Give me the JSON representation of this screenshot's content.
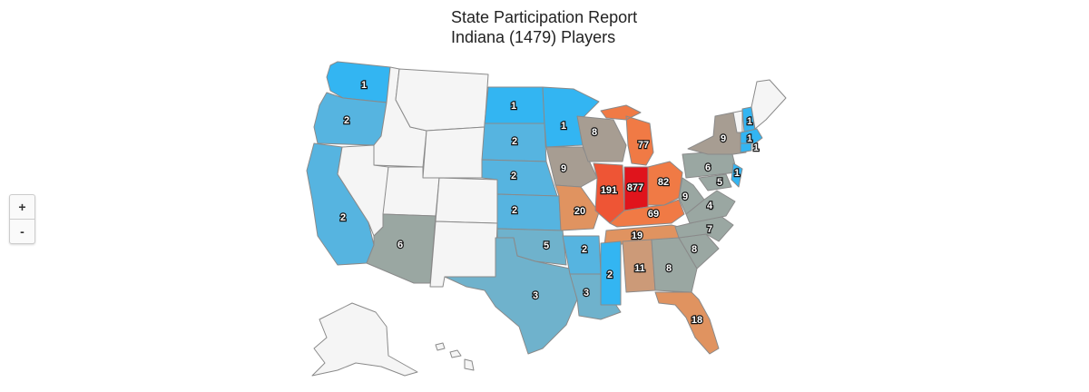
{
  "title": {
    "line1": "State Participation Report",
    "line2": "Indiana (1479) Players"
  },
  "zoom": {
    "in_label": "+",
    "out_label": "-"
  },
  "colors": {
    "no_data": "#f5f5f5",
    "border": "#8a8a8a",
    "blue_bright": "#33b5f2",
    "blue_mid": "#56b4e0",
    "blue_steel": "#6fb2cc",
    "gray_green": "#9aa7a2",
    "taupe": "#a79d92",
    "tan": "#cc9a78",
    "orange_light": "#e09360",
    "orange": "#f07a45",
    "red_orange": "#ee5535",
    "red": "#e0141c"
  },
  "chart_data": {
    "type": "choropleth",
    "region": "United States",
    "states": [
      {
        "state": "Washington",
        "value": 1
      },
      {
        "state": "Oregon",
        "value": 2
      },
      {
        "state": "California",
        "value": 2
      },
      {
        "state": "Arizona",
        "value": 6
      },
      {
        "state": "North Dakota",
        "value": 1
      },
      {
        "state": "South Dakota",
        "value": 2
      },
      {
        "state": "Nebraska",
        "value": 2
      },
      {
        "state": "Kansas",
        "value": 2
      },
      {
        "state": "Oklahoma",
        "value": 5
      },
      {
        "state": "Texas",
        "value": 3
      },
      {
        "state": "Minnesota",
        "value": 1
      },
      {
        "state": "Iowa",
        "value": 9
      },
      {
        "state": "Missouri",
        "value": 20
      },
      {
        "state": "Arkansas",
        "value": 2
      },
      {
        "state": "Louisiana",
        "value": 3
      },
      {
        "state": "Wisconsin",
        "value": 8
      },
      {
        "state": "Illinois",
        "value": 191
      },
      {
        "state": "Indiana",
        "value": 877
      },
      {
        "state": "Michigan",
        "value": 77
      },
      {
        "state": "Ohio",
        "value": 82
      },
      {
        "state": "Kentucky",
        "value": 69
      },
      {
        "state": "Tennessee",
        "value": 19
      },
      {
        "state": "Mississippi",
        "value": 2
      },
      {
        "state": "Alabama",
        "value": 11
      },
      {
        "state": "Georgia",
        "value": 8
      },
      {
        "state": "Florida",
        "value": 18
      },
      {
        "state": "South Carolina",
        "value": 8
      },
      {
        "state": "North Carolina",
        "value": 7
      },
      {
        "state": "Virginia",
        "value": 4
      },
      {
        "state": "West Virginia",
        "value": 9
      },
      {
        "state": "Pennsylvania",
        "value": 6
      },
      {
        "state": "Maryland",
        "value": 5
      },
      {
        "state": "New Jersey",
        "value": 1
      },
      {
        "state": "New York",
        "value": 9
      },
      {
        "state": "Connecticut",
        "value": 1
      },
      {
        "state": "Massachusetts",
        "value": 1
      },
      {
        "state": "New Hampshire",
        "value": 1
      }
    ]
  }
}
